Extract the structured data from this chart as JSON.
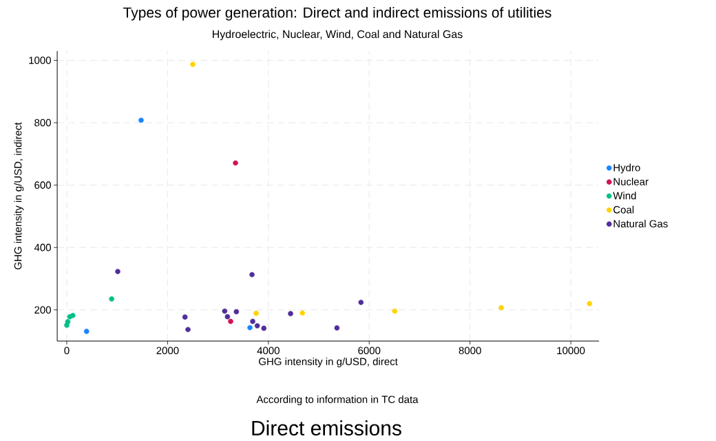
{
  "chart_data": {
    "type": "scatter",
    "title": "Types of power generation: Direct and indirect emissions of utilities",
    "subtitle": "Hydroelectric, Nuclear, Wind, Coal and Natural Gas",
    "xlabel": "GHG intensity in g/USD, direct",
    "ylabel": "GHG intensity in g/USD, indirect",
    "annotations": [
      "According to information in TC data",
      "Direct emissions"
    ],
    "xlim": [
      -190,
      10560
    ],
    "ylim": [
      100,
      1030
    ],
    "xticks": [
      0,
      2000,
      4000,
      6000,
      8000,
      10000
    ],
    "yticks": [
      200,
      400,
      600,
      800,
      1000
    ],
    "grid": true,
    "legend": "right",
    "marker": "circle",
    "series": [
      {
        "name": "Hydro",
        "color": "#1a85ff",
        "x": [
          1475,
          392,
          3634
        ],
        "values": [
          808,
          131,
          143
        ]
      },
      {
        "name": "Nuclear",
        "color": "#d41159",
        "x": [
          3347,
          3251
        ],
        "values": [
          671,
          163
        ]
      },
      {
        "name": "Wind",
        "color": "#00c087",
        "x": [
          0,
          20,
          60,
          120,
          890
        ],
        "values": [
          151,
          162,
          178,
          182,
          235
        ]
      },
      {
        "name": "Coal",
        "color": "#ffd300",
        "x": [
          2500,
          3757,
          4676,
          6507,
          8620,
          10372
        ],
        "values": [
          987,
          189,
          190,
          196,
          207,
          220
        ]
      },
      {
        "name": "Natural Gas",
        "color": "#512e9b",
        "x": [
          1011,
          2345,
          2404,
          3133,
          3188,
          3365,
          3675,
          3689,
          3779,
          3910,
          4440,
          5360,
          5837
        ],
        "values": [
          323,
          177,
          137,
          196,
          178,
          194,
          313,
          163,
          149,
          141,
          188,
          142,
          224
        ]
      }
    ]
  }
}
